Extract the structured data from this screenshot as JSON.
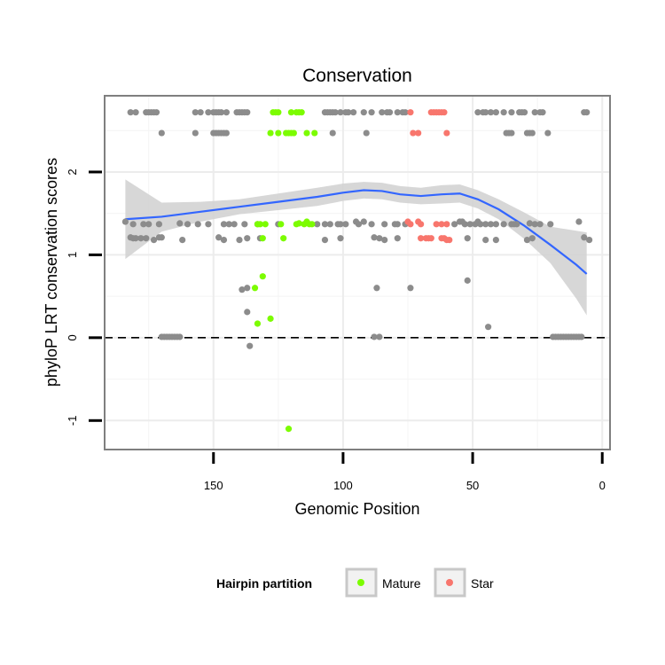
{
  "chart_data": {
    "type": "scatter",
    "title": "Conservation",
    "xlabel": "Genomic Position",
    "ylabel": "phyloP LRT conservation scores",
    "x_reversed": true,
    "xlim": [
      192,
      -3
    ],
    "ylim": [
      -1.35,
      2.92
    ],
    "x_ticks": [
      150,
      100,
      50,
      0
    ],
    "y_ticks": [
      -1,
      0,
      1,
      2
    ],
    "reference_line": {
      "y": 0,
      "style": "dashed"
    },
    "grid": true,
    "legend": {
      "title": "Hairpin partition",
      "position": "bottom",
      "entries": [
        {
          "name": "Mature",
          "color": "#7cfc00"
        },
        {
          "name": "Star",
          "color": "#f8766d"
        }
      ]
    },
    "colors": {
      "other": "#8c8c8c",
      "mature": "#7cfc00",
      "star": "#f8766d",
      "smooth": "#3366ff",
      "band": "#d3d3d3"
    },
    "series": [
      {
        "key": "other",
        "points": [
          [
            182,
            2.72
          ],
          [
            180,
            2.72
          ],
          [
            176,
            2.72
          ],
          [
            175,
            2.72
          ],
          [
            174,
            2.72
          ],
          [
            173,
            2.72
          ],
          [
            172,
            2.72
          ],
          [
            157,
            2.72
          ],
          [
            155,
            2.72
          ],
          [
            152,
            2.72
          ],
          [
            150,
            2.72
          ],
          [
            149,
            2.72
          ],
          [
            148,
            2.72
          ],
          [
            147,
            2.72
          ],
          [
            145,
            2.72
          ],
          [
            141,
            2.72
          ],
          [
            140,
            2.72
          ],
          [
            139,
            2.72
          ],
          [
            138,
            2.72
          ],
          [
            137,
            2.72
          ],
          [
            107,
            2.72
          ],
          [
            106,
            2.72
          ],
          [
            105,
            2.72
          ],
          [
            104,
            2.72
          ],
          [
            103,
            2.72
          ],
          [
            101,
            2.72
          ],
          [
            99,
            2.72
          ],
          [
            98,
            2.72
          ],
          [
            96,
            2.72
          ],
          [
            92,
            2.72
          ],
          [
            89,
            2.72
          ],
          [
            85,
            2.72
          ],
          [
            83,
            2.72
          ],
          [
            82,
            2.72
          ],
          [
            79,
            2.72
          ],
          [
            77,
            2.72
          ],
          [
            76,
            2.72
          ],
          [
            48,
            2.72
          ],
          [
            46,
            2.72
          ],
          [
            45,
            2.72
          ],
          [
            43,
            2.72
          ],
          [
            41,
            2.72
          ],
          [
            38,
            2.72
          ],
          [
            35,
            2.72
          ],
          [
            32,
            2.72
          ],
          [
            31,
            2.72
          ],
          [
            30,
            2.72
          ],
          [
            26,
            2.72
          ],
          [
            24,
            2.72
          ],
          [
            23,
            2.72
          ],
          [
            7,
            2.72
          ],
          [
            6,
            2.72
          ],
          [
            170,
            2.47
          ],
          [
            157,
            2.47
          ],
          [
            150,
            2.47
          ],
          [
            149,
            2.47
          ],
          [
            148,
            2.47
          ],
          [
            147,
            2.47
          ],
          [
            146,
            2.47
          ],
          [
            145,
            2.47
          ],
          [
            104,
            2.47
          ],
          [
            91,
            2.47
          ],
          [
            37,
            2.47
          ],
          [
            36,
            2.47
          ],
          [
            35,
            2.47
          ],
          [
            29,
            2.47
          ],
          [
            28,
            2.47
          ],
          [
            27,
            2.47
          ],
          [
            21,
            2.47
          ],
          [
            184,
            1.4
          ],
          [
            181,
            1.37
          ],
          [
            177,
            1.37
          ],
          [
            175,
            1.37
          ],
          [
            171,
            1.37
          ],
          [
            163,
            1.38
          ],
          [
            160,
            1.37
          ],
          [
            156,
            1.37
          ],
          [
            152,
            1.37
          ],
          [
            146,
            1.37
          ],
          [
            144,
            1.37
          ],
          [
            142,
            1.37
          ],
          [
            138,
            1.37
          ],
          [
            133,
            1.37
          ],
          [
            125,
            1.37
          ],
          [
            110,
            1.37
          ],
          [
            107,
            1.37
          ],
          [
            105,
            1.37
          ],
          [
            102,
            1.37
          ],
          [
            101,
            1.37
          ],
          [
            99,
            1.37
          ],
          [
            95,
            1.4
          ],
          [
            94,
            1.37
          ],
          [
            92,
            1.4
          ],
          [
            89,
            1.37
          ],
          [
            84,
            1.37
          ],
          [
            80,
            1.37
          ],
          [
            79,
            1.37
          ],
          [
            76,
            1.37
          ],
          [
            57,
            1.37
          ],
          [
            55,
            1.4
          ],
          [
            54,
            1.4
          ],
          [
            53,
            1.37
          ],
          [
            51,
            1.37
          ],
          [
            49,
            1.37
          ],
          [
            48,
            1.4
          ],
          [
            47,
            1.37
          ],
          [
            45,
            1.37
          ],
          [
            43,
            1.37
          ],
          [
            41,
            1.37
          ],
          [
            38,
            1.37
          ],
          [
            35,
            1.37
          ],
          [
            34,
            1.37
          ],
          [
            33,
            1.37
          ],
          [
            28,
            1.38
          ],
          [
            26,
            1.37
          ],
          [
            24,
            1.37
          ],
          [
            20,
            1.37
          ],
          [
            9,
            1.4
          ],
          [
            182,
            1.21
          ],
          [
            181,
            1.2
          ],
          [
            180,
            1.2
          ],
          [
            178,
            1.2
          ],
          [
            176,
            1.2
          ],
          [
            173,
            1.18
          ],
          [
            171,
            1.21
          ],
          [
            170,
            1.21
          ],
          [
            162,
            1.18
          ],
          [
            148,
            1.21
          ],
          [
            146,
            1.18
          ],
          [
            140,
            1.18
          ],
          [
            137,
            1.2
          ],
          [
            132,
            1.2
          ],
          [
            107,
            1.18
          ],
          [
            101,
            1.2
          ],
          [
            88,
            1.21
          ],
          [
            86,
            1.2
          ],
          [
            84,
            1.18
          ],
          [
            79,
            1.2
          ],
          [
            52,
            1.2
          ],
          [
            45,
            1.18
          ],
          [
            41,
            1.18
          ],
          [
            29,
            1.18
          ],
          [
            27,
            1.2
          ],
          [
            7,
            1.21
          ],
          [
            5,
            1.18
          ],
          [
            139,
            0.58
          ],
          [
            137,
            0.6
          ],
          [
            87,
            0.6
          ],
          [
            74,
            0.6
          ],
          [
            52,
            0.69
          ],
          [
            44,
            0.13
          ],
          [
            137,
            0.31
          ],
          [
            136,
            -0.1
          ],
          [
            170,
            0.01
          ],
          [
            169,
            0.01
          ],
          [
            168,
            0.01
          ],
          [
            167,
            0.01
          ],
          [
            166,
            0.01
          ],
          [
            165,
            0.01
          ],
          [
            164,
            0.01
          ],
          [
            163,
            0.01
          ],
          [
            88,
            0.01
          ],
          [
            86,
            0.01
          ],
          [
            19,
            0.01
          ],
          [
            18,
            0.01
          ],
          [
            17,
            0.01
          ],
          [
            16,
            0.01
          ],
          [
            15,
            0.01
          ],
          [
            14,
            0.01
          ],
          [
            13,
            0.01
          ],
          [
            12,
            0.01
          ],
          [
            11,
            0.01
          ],
          [
            10,
            0.01
          ],
          [
            9,
            0.01
          ],
          [
            8,
            0.01
          ]
        ]
      },
      {
        "key": "mature",
        "name": "Mature",
        "points": [
          [
            127,
            2.72
          ],
          [
            126,
            2.72
          ],
          [
            125,
            2.72
          ],
          [
            120,
            2.72
          ],
          [
            118,
            2.72
          ],
          [
            117,
            2.72
          ],
          [
            116,
            2.72
          ],
          [
            128,
            2.47
          ],
          [
            125,
            2.47
          ],
          [
            122,
            2.47
          ],
          [
            121,
            2.47
          ],
          [
            120,
            2.47
          ],
          [
            119,
            2.47
          ],
          [
            114,
            2.47
          ],
          [
            111,
            2.47
          ],
          [
            133,
            1.37
          ],
          [
            132,
            1.37
          ],
          [
            130,
            1.37
          ],
          [
            124,
            1.37
          ],
          [
            118,
            1.37
          ],
          [
            117,
            1.38
          ],
          [
            115,
            1.37
          ],
          [
            114,
            1.4
          ],
          [
            113,
            1.37
          ],
          [
            112,
            1.37
          ],
          [
            131,
            1.2
          ],
          [
            123,
            1.2
          ],
          [
            131,
            0.74
          ],
          [
            134,
            0.6
          ],
          [
            128,
            0.23
          ],
          [
            133,
            0.17
          ],
          [
            121,
            -1.1
          ]
        ]
      },
      {
        "key": "star",
        "name": "Star",
        "points": [
          [
            74,
            2.72
          ],
          [
            66,
            2.72
          ],
          [
            65,
            2.72
          ],
          [
            64,
            2.72
          ],
          [
            63,
            2.72
          ],
          [
            62,
            2.72
          ],
          [
            61,
            2.72
          ],
          [
            73,
            2.47
          ],
          [
            71,
            2.47
          ],
          [
            60,
            2.47
          ],
          [
            75,
            1.4
          ],
          [
            74,
            1.37
          ],
          [
            71,
            1.4
          ],
          [
            70,
            1.37
          ],
          [
            64,
            1.37
          ],
          [
            62,
            1.37
          ],
          [
            60,
            1.37
          ],
          [
            70,
            1.2
          ],
          [
            68,
            1.2
          ],
          [
            67,
            1.2
          ],
          [
            66,
            1.2
          ],
          [
            62,
            1.2
          ],
          [
            61,
            1.2
          ],
          [
            60,
            1.18
          ],
          [
            59,
            1.18
          ]
        ]
      }
    ],
    "smooth": {
      "x": [
        184,
        170,
        155,
        140,
        125,
        110,
        100,
        92,
        85,
        78,
        70,
        62,
        55,
        48,
        40,
        30,
        20,
        10,
        6
      ],
      "y": [
        1.43,
        1.46,
        1.52,
        1.58,
        1.64,
        1.7,
        1.75,
        1.78,
        1.77,
        1.73,
        1.71,
        1.73,
        1.74,
        1.67,
        1.55,
        1.35,
        1.12,
        0.88,
        0.77
      ],
      "ymin": [
        0.95,
        1.28,
        1.4,
        1.49,
        1.54,
        1.59,
        1.65,
        1.68,
        1.67,
        1.63,
        1.61,
        1.62,
        1.63,
        1.56,
        1.43,
        1.19,
        0.9,
        0.47,
        0.27
      ],
      "ymax": [
        1.91,
        1.63,
        1.64,
        1.67,
        1.74,
        1.81,
        1.86,
        1.88,
        1.87,
        1.83,
        1.81,
        1.84,
        1.85,
        1.78,
        1.67,
        1.51,
        1.34,
        1.29,
        1.27
      ]
    }
  }
}
